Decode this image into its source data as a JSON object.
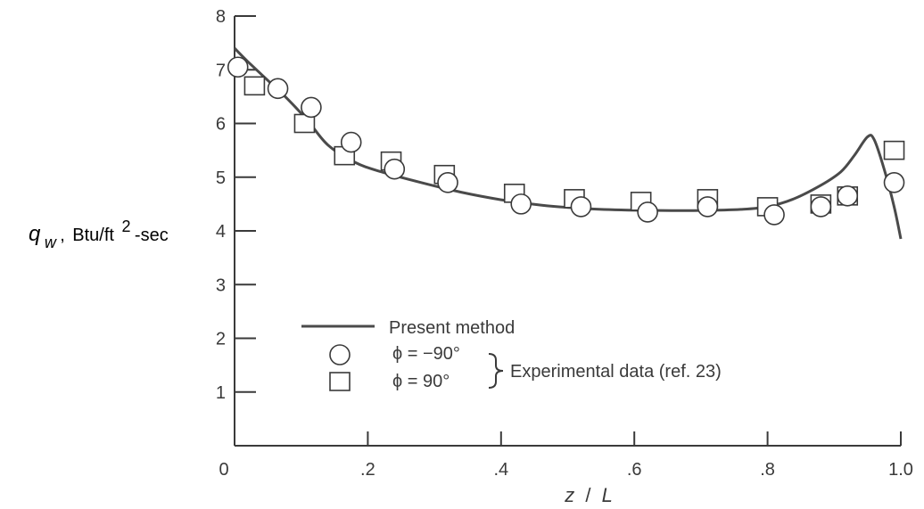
{
  "chart_data": {
    "type": "line",
    "xlabel_parts": {
      "z": "z",
      "slash": "/",
      "L": "L"
    },
    "ylabel_parts": {
      "q": "q",
      "sub": "w",
      "comma": ",",
      "unit_a": "Btu/ft",
      "sup": "2",
      "unit_b": "-sec"
    },
    "xlim": [
      0,
      1.0
    ],
    "ylim": [
      0,
      8
    ],
    "x_ticks": [
      0,
      0.2,
      0.4,
      0.6,
      0.8,
      1.0
    ],
    "x_tick_labels": [
      "0",
      ".2",
      ".4",
      ".6",
      ".8",
      "1.0"
    ],
    "y_ticks": [
      1,
      2,
      3,
      4,
      5,
      6,
      7,
      8
    ],
    "y_tick_labels": [
      "1",
      "2",
      "3",
      "4",
      "5",
      "6",
      "7",
      "8"
    ],
    "grid": false,
    "legend_placement": "center-left",
    "series": [
      {
        "name": "Present method",
        "style": "line",
        "x": [
          0.0,
          0.02,
          0.05,
          0.08,
          0.11,
          0.14,
          0.18,
          0.22,
          0.28,
          0.34,
          0.4,
          0.46,
          0.52,
          0.58,
          0.64,
          0.7,
          0.76,
          0.8,
          0.84,
          0.88,
          0.91,
          0.93,
          0.95,
          0.96,
          0.975,
          0.99,
          1.0
        ],
        "y": [
          7.4,
          7.15,
          6.8,
          6.45,
          6.05,
          5.6,
          5.28,
          5.1,
          4.9,
          4.72,
          4.58,
          4.48,
          4.42,
          4.39,
          4.38,
          4.38,
          4.4,
          4.45,
          4.6,
          4.85,
          5.1,
          5.4,
          5.75,
          5.7,
          5.15,
          4.45,
          3.85
        ]
      },
      {
        "name": "ϕ = −90°",
        "style": "circle",
        "x": [
          0.005,
          0.065,
          0.115,
          0.175,
          0.24,
          0.32,
          0.43,
          0.52,
          0.62,
          0.71,
          0.81,
          0.88,
          0.92,
          0.99
        ],
        "y": [
          7.05,
          6.65,
          6.3,
          5.65,
          5.15,
          4.9,
          4.5,
          4.45,
          4.35,
          4.45,
          4.3,
          4.45,
          4.65,
          4.9
        ]
      },
      {
        "name": "ϕ = 90°",
        "style": "square",
        "x": [
          0.03,
          0.105,
          0.165,
          0.235,
          0.315,
          0.42,
          0.51,
          0.61,
          0.71,
          0.8,
          0.88,
          0.92,
          0.99
        ],
        "y": [
          6.7,
          6.0,
          5.4,
          5.3,
          5.05,
          4.7,
          4.6,
          4.55,
          4.6,
          4.45,
          4.5,
          4.65,
          5.5
        ]
      }
    ],
    "legend": {
      "line_label": "Present method",
      "circle_label": "ϕ = −90°",
      "square_label": "ϕ = 90°",
      "group_label": "Experimental data (ref. 23)"
    }
  }
}
